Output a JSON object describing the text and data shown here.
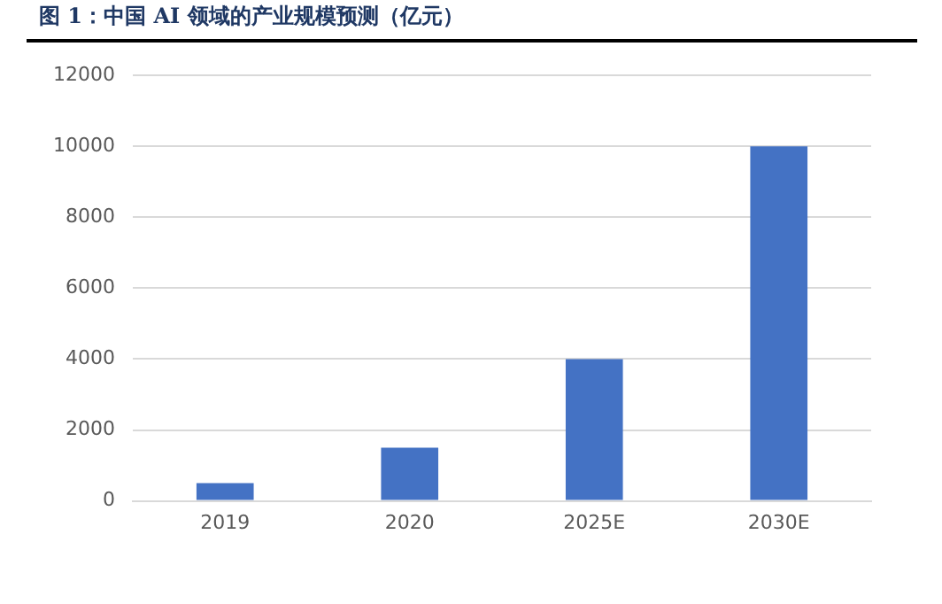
{
  "chart_data": {
    "type": "bar",
    "title": "图 1：中国 AI 领域的产业规模预测（亿元）",
    "categories": [
      "2019",
      "2020",
      "2025E",
      "2030E"
    ],
    "values": [
      500,
      1500,
      4000,
      10000
    ],
    "color": "#4472c4",
    "ylim": [
      0,
      12000
    ],
    "yticks": [
      0,
      2000,
      4000,
      6000,
      8000,
      10000,
      12000
    ],
    "grid": "y"
  }
}
